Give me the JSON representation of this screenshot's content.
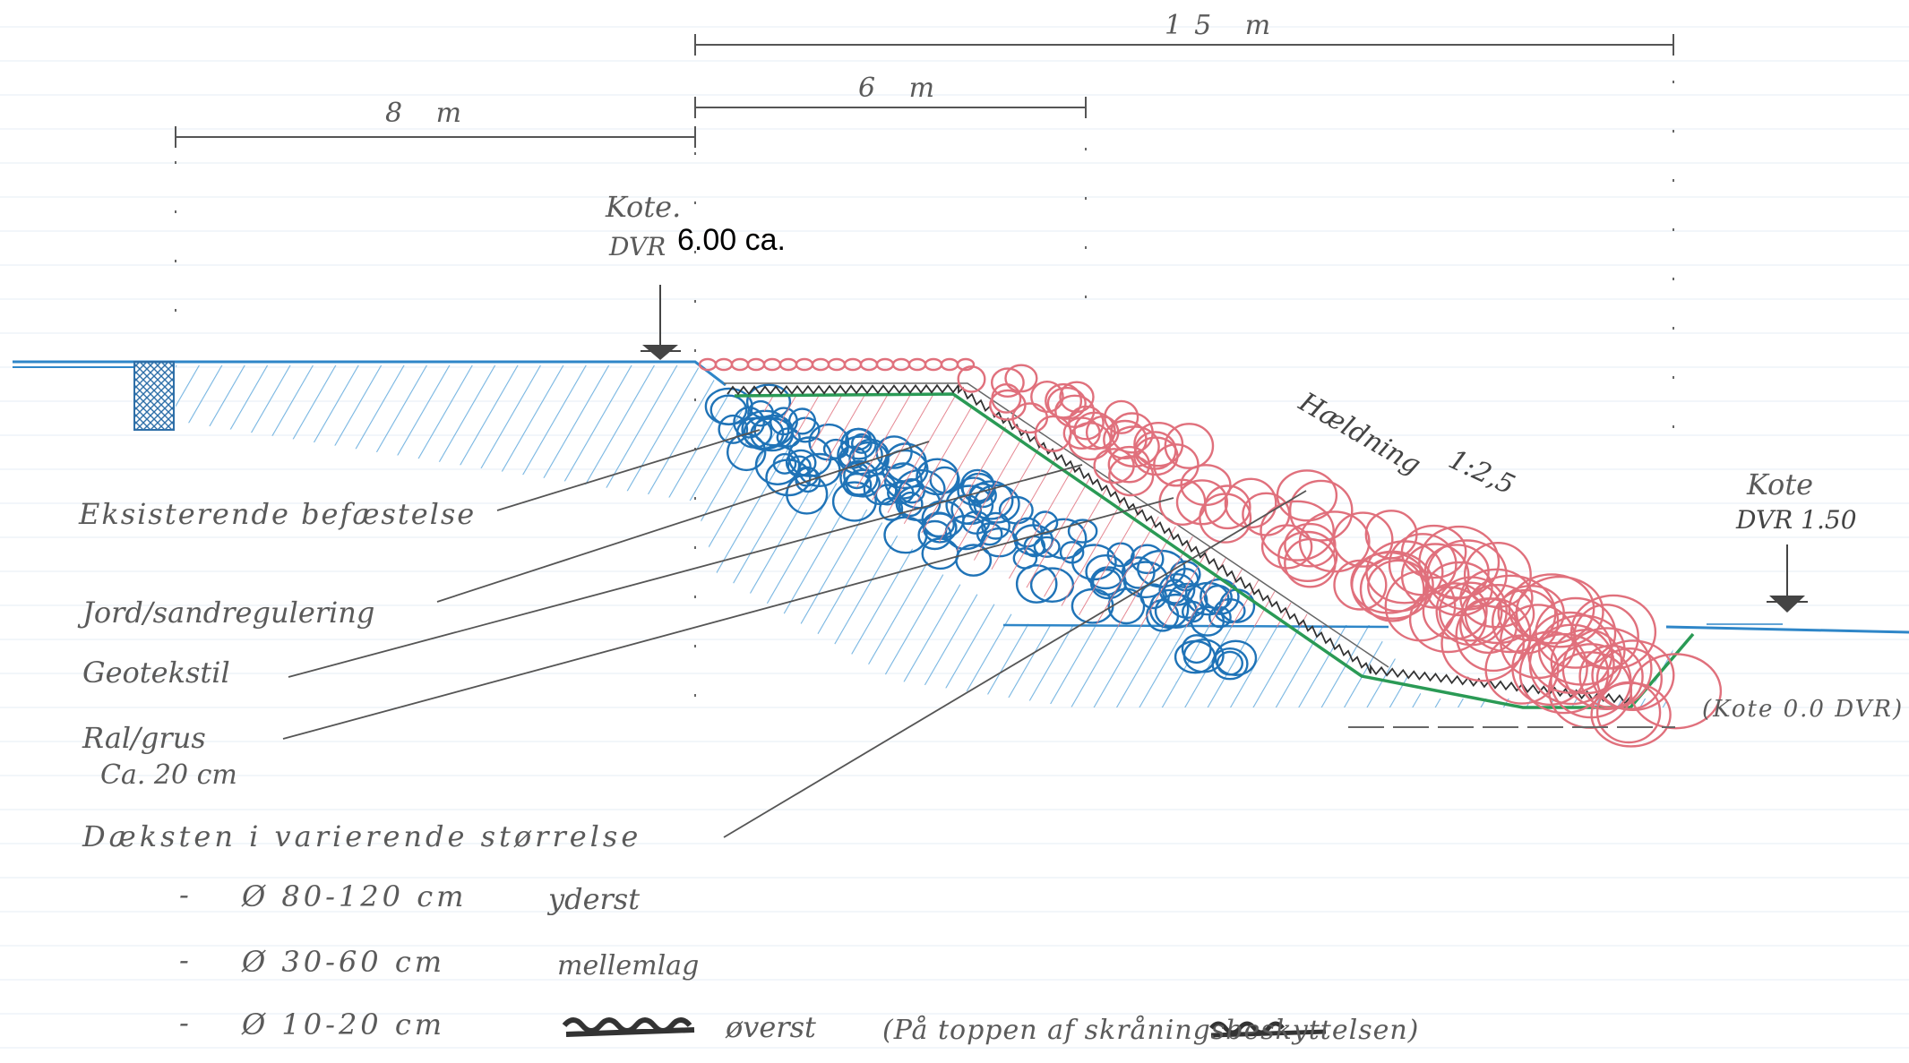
{
  "dimensions": {
    "overall": "15 m",
    "crest": "6 m",
    "land": "8 m"
  },
  "levels": {
    "top_kote": "Kote.",
    "top_dvr_prefix": "DVR",
    "top_value": "6.00 ca.",
    "water_kote": "Kote",
    "water_dvr": "DVR 1.50",
    "bottom_note": "(Kote 0.0 DVR)"
  },
  "slope": {
    "label": "Hældning",
    "ratio": "1:2,5"
  },
  "legend": {
    "existing": "Eksisterende befæstelse",
    "soil": "Jord/sandregulering",
    "geotextile": "Geotekstil",
    "gravel_line1": "Ral/grus",
    "gravel_line2": "Ca. 20 cm",
    "cover_heading": "Dæksten i varierende størrelse",
    "sizes": [
      {
        "dash": "-",
        "diameter": "Ø 80-120 cm",
        "position": "yderst"
      },
      {
        "dash": "-",
        "diameter": "Ø 30-60 cm",
        "position": "mellemlag"
      },
      {
        "dash": "-",
        "diameter": "Ø 10-20 cm",
        "position": "øverst",
        "note": "(På toppen af skråningsbeskyttelsen)"
      }
    ]
  },
  "colors": {
    "existing": "#2e86c8",
    "cover_stone": "#e0707c",
    "geotextile": "#2a9a55",
    "ink": "#555555"
  }
}
